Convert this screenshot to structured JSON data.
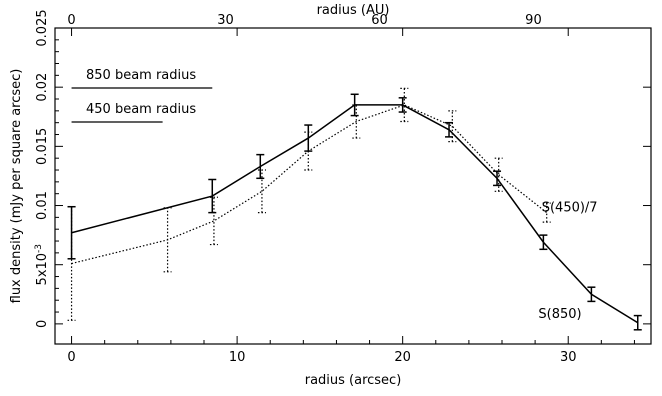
{
  "chart_data": {
    "type": "line",
    "xlabel": "radius (arcsec)",
    "x2label": "radius (AU)",
    "ylabel": "flux density (mJy per square arcsec)",
    "xlim": [
      -1,
      35
    ],
    "ylim": [
      -0.0017,
      0.025
    ],
    "x_ticks": [
      0,
      10,
      20,
      30
    ],
    "x2_ticks": [
      {
        "label": "0",
        "x": 0
      },
      {
        "label": "30",
        "x": 9.3
      },
      {
        "label": "60",
        "x": 18.6
      },
      {
        "label": "90",
        "x": 27.9
      }
    ],
    "y_ticks": [
      {
        "value": 0,
        "label": "0"
      },
      {
        "value": 0.005,
        "label": "5x10^-3"
      },
      {
        "value": 0.01,
        "label": "0.01"
      },
      {
        "value": 0.015,
        "label": "0.015"
      },
      {
        "value": 0.02,
        "label": "0.02"
      },
      {
        "value": 0.025,
        "label": "0.025"
      }
    ],
    "legend": [
      {
        "label": "850 beam radius",
        "value": 8.5
      },
      {
        "label": "450 beam radius",
        "value": 5.5
      }
    ],
    "series": [
      {
        "name": "S(850)",
        "style": "solid",
        "points": [
          {
            "x": 0,
            "y": 0.0077,
            "err": 0.0022
          },
          {
            "x": 8.5,
            "y": 0.0108,
            "err": 0.0014
          },
          {
            "x": 11.4,
            "y": 0.0133,
            "err": 0.001
          },
          {
            "x": 14.3,
            "y": 0.0157,
            "err": 0.0011
          },
          {
            "x": 17.1,
            "y": 0.0185,
            "err": 0.0009
          },
          {
            "x": 20,
            "y": 0.0185,
            "err": 0.0006
          },
          {
            "x": 22.8,
            "y": 0.0164,
            "err": 0.0006
          },
          {
            "x": 25.7,
            "y": 0.0123,
            "err": 0.0006
          },
          {
            "x": 28.5,
            "y": 0.0069,
            "err": 0.0006
          },
          {
            "x": 31.4,
            "y": 0.0025,
            "err": 0.0006
          },
          {
            "x": 34.2,
            "y": 0.0001,
            "err": 0.0006
          }
        ]
      },
      {
        "name": "S(450)/7",
        "style": "dotted",
        "points": [
          {
            "x": 0,
            "y": 0.0051,
            "err": 0.0048
          },
          {
            "x": 5.8,
            "y": 0.0071,
            "err": 0.0027
          },
          {
            "x": 8.6,
            "y": 0.0087,
            "err": 0.002
          },
          {
            "x": 11.5,
            "y": 0.0112,
            "err": 0.0018
          },
          {
            "x": 14.3,
            "y": 0.0146,
            "err": 0.0016
          },
          {
            "x": 17.2,
            "y": 0.0171,
            "err": 0.0014
          },
          {
            "x": 20.1,
            "y": 0.0185,
            "err": 0.0014
          },
          {
            "x": 23,
            "y": 0.0167,
            "err": 0.0013
          },
          {
            "x": 25.8,
            "y": 0.0126,
            "err": 0.0014
          },
          {
            "x": 28.7,
            "y": 0.0094,
            "err": 0.0008
          }
        ]
      }
    ],
    "annotations": [
      {
        "text": "S(450)/7",
        "x": 28.4,
        "y": 0.0095
      },
      {
        "text": "S(850)",
        "x": 28.2,
        "y": 0.0005
      }
    ]
  }
}
